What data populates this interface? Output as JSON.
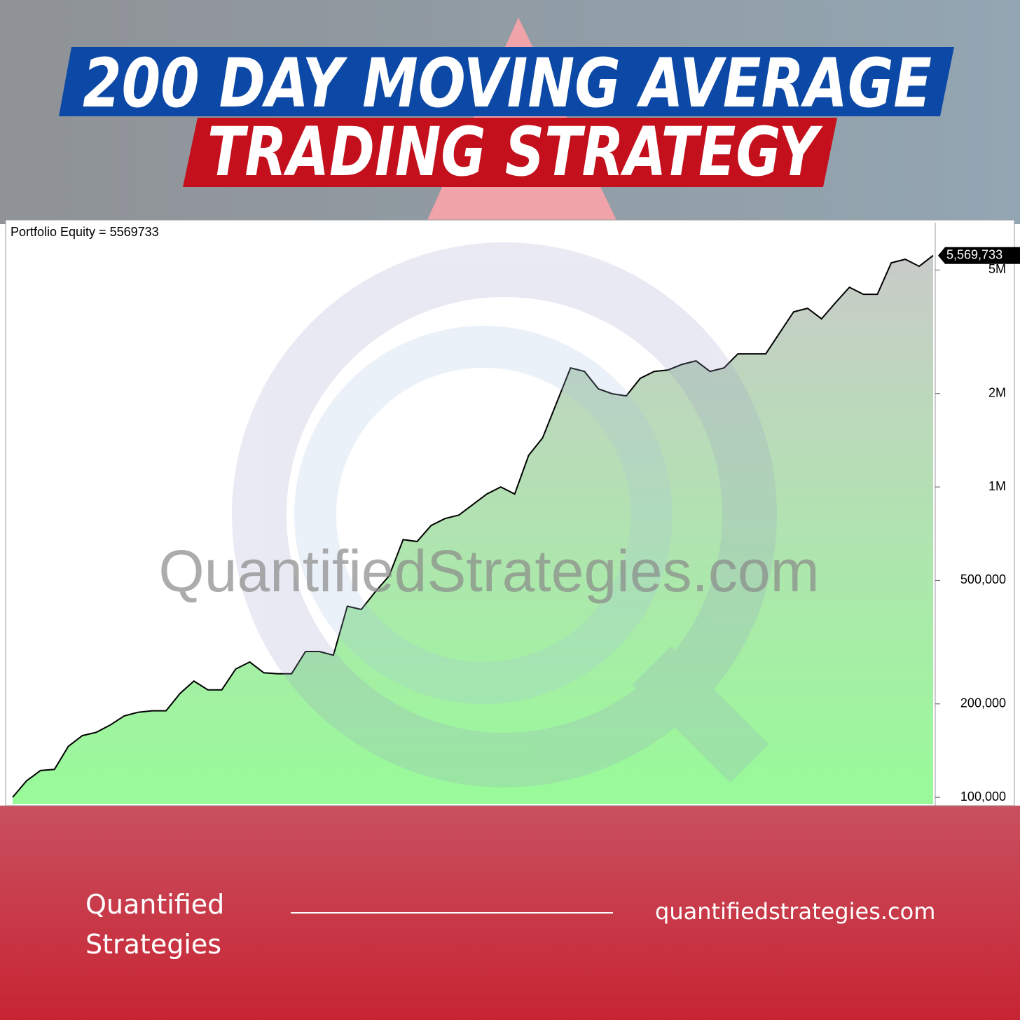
{
  "header": {
    "title_line1": "200 DAY MOVING AVERAGE",
    "title_line2": "TRADING STRATEGY"
  },
  "chart_data": {
    "type": "line",
    "title": "Portfolio Equity = 5569733",
    "values": [
      100000,
      113000,
      122000,
      123000,
      146000,
      158000,
      162000,
      171000,
      183000,
      188000,
      190000,
      190000,
      216000,
      237000,
      222000,
      222000,
      259000,
      273000,
      252000,
      250000,
      250000,
      295000,
      295000,
      287000,
      413000,
      403000,
      459000,
      517000,
      677000,
      667000,
      751000,
      791000,
      812000,
      878000,
      949000,
      1000000,
      949000,
      1264000,
      1439000,
      1866000,
      2419000,
      2357000,
      2070000,
      1996000,
      1966000,
      2238000,
      2357000,
      2382000,
      2483000,
      2549000,
      2357000,
      2419000,
      2685000,
      2685000,
      2685000,
      3138000,
      3667000,
      3763000,
      3482000,
      3924000,
      4399000,
      4177000,
      4177000,
      5277000,
      5415000,
      5141000,
      5569733
    ],
    "value_labels": [
      null,
      null,
      null,
      null,
      null,
      null,
      null,
      null,
      null,
      null,
      null,
      null,
      null,
      null,
      null,
      null,
      null,
      null,
      null,
      null,
      null,
      null,
      null,
      null,
      null,
      null,
      null,
      null,
      null,
      null,
      null,
      null,
      null,
      null,
      null,
      null,
      null,
      null,
      null,
      null,
      null,
      null,
      null,
      null,
      null,
      null,
      null,
      null,
      null,
      null,
      null,
      null,
      null,
      null,
      null,
      null,
      null,
      null,
      null,
      null,
      null,
      null,
      null,
      null,
      null,
      null,
      "5,569,733"
    ],
    "color": "#000000",
    "fill": "#98fb98",
    "log_scale": true,
    "ylim": [
      95000,
      7100000
    ],
    "yticks": [
      {
        "value": 100000,
        "label": "100,000"
      },
      {
        "value": 200000,
        "label": "200,000"
      },
      {
        "value": 500000,
        "label": "500,000"
      },
      {
        "value": 1000000,
        "label": "1M"
      },
      {
        "value": 2000000,
        "label": "2M"
      },
      {
        "value": 5000000,
        "label": "5M"
      }
    ]
  },
  "watermark": "QuantifiedStrategies.com",
  "footer": {
    "brand_line1": "Quantified",
    "brand_line2": "Strategies",
    "url": "quantifiedstrategies.com"
  }
}
